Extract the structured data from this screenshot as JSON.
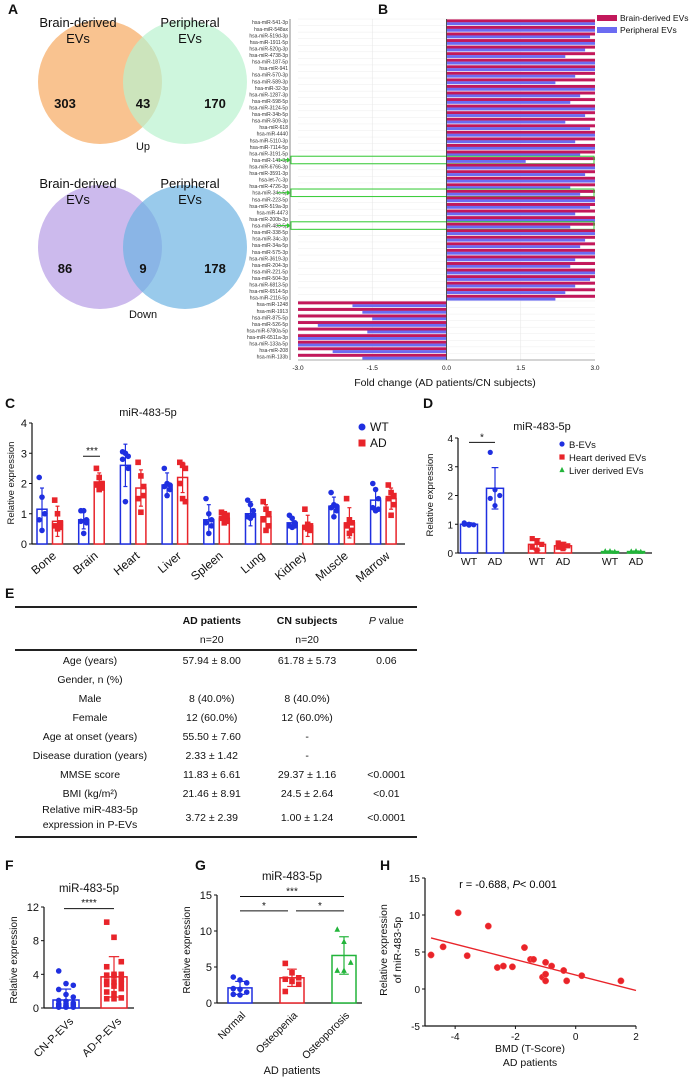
{
  "panel_labels": [
    "A",
    "B",
    "C",
    "D",
    "E",
    "F",
    "G",
    "H"
  ],
  "colors": {
    "orange": "#f9c08a",
    "green": "#b9f2cf",
    "purple": "#c9b6ec",
    "blue_venn": "#6db3e3",
    "magenta": "#c2185b",
    "periwinkle": "#6b6bf2",
    "wt_blue": "#1f2fe0",
    "ad_red": "#e8242a",
    "liver_green": "#22b43a",
    "highlight": "#33cc33"
  },
  "chart_data": [
    {
      "id": "A",
      "type": "venn",
      "sets": [
        {
          "title": "Up",
          "left_label": [
            "Brain-derived",
            "EVs"
          ],
          "right_label": [
            "Peripheral",
            "EVs"
          ],
          "left_only": "303",
          "overlap": "43",
          "right_only": "170"
        },
        {
          "title": "Down",
          "left_label": [
            "Brain-derived",
            "EVs"
          ],
          "right_label": [
            "Peripheral",
            "EVs"
          ],
          "left_only": "86",
          "overlap": "9",
          "right_only": "178"
        }
      ]
    },
    {
      "id": "B",
      "type": "bar",
      "orientation": "horizontal",
      "xlabel": "Fold change (AD patients/CN subjects)",
      "xlim": [
        -3.0,
        3.0
      ],
      "xticks": [
        "-3.0",
        "-1.5",
        "0.0",
        "1.5",
        "3.0"
      ],
      "legend_position": "top-right",
      "categories": [
        "hsa-miR-541-3p",
        "hsa-miR-548ax",
        "hsa-miR-519d-3p",
        "hsa-miR-1911-5p",
        "hsa-miR-520g-3p",
        "hsa-miR-4738-3p",
        "hsa-miR-187-5p",
        "hsa-miR-941",
        "hsa-miR-570-3p",
        "hsa-miR-589-3p",
        "hsa-miR-32-3p",
        "hsa-miR-1287-3p",
        "hsa-miR-598-5p",
        "hsa-miR-3124-5p",
        "hsa-miR-34b-5p",
        "hsa-miR-509-3p",
        "hsa-miR-618",
        "hsa-miR-4440",
        "hsa-miR-5110-3p",
        "hsa-miR-7114-5p",
        "hsa-miR-3191-5p",
        "hsa-miR-141-3p",
        "hsa-miR-6766-3p",
        "hsa-miR-3591-3p",
        "hsa-let-7c-3p",
        "hsa-miR-4726-3p",
        "hsa-miR-34c-5p",
        "hsa-miR-223-5p",
        "hsa-miR-519a-3p",
        "hsa-miR-4473",
        "hsa-miR-200b-3p",
        "hsa-miR-483-5p",
        "hsa-miR-338-5p",
        "hsa-miR-34c-3p",
        "hsa-miR-34a-5p",
        "hsa-miR-575-3p",
        "hsa-miR-3619-3p",
        "hsa-miR-204-3p",
        "hsa-miR-221-5p",
        "hsa-miR-504-3p",
        "hsa-miR-6813-5p",
        "hsa-miR-6514-5p",
        "hsa-miR-2116-5p",
        "hsa-miR-1248",
        "hsa-miR-1913",
        "hsa-miR-875-5p",
        "hsa-miR-526-5p",
        "hsa-miR-6780a-5p",
        "hsa-miR-6511a-3p",
        "hsa-miR-133a-5p",
        "hsa-miR-208",
        "hsa-miR-133b"
      ],
      "highlighted": [
        "hsa-miR-141-3p",
        "hsa-miR-34c-5p",
        "hsa-miR-483-5p"
      ],
      "series": [
        {
          "name": "Brain-derived EVs",
          "values": [
            3,
            3,
            3,
            3,
            3,
            3,
            3,
            3,
            3,
            3,
            3,
            3,
            3,
            3,
            3,
            3,
            3,
            3,
            3,
            3,
            3,
            3,
            3,
            3,
            3,
            3,
            3,
            3,
            3,
            3,
            3,
            3,
            3,
            3,
            3,
            3,
            3,
            3,
            3,
            3,
            3,
            3,
            3,
            -3,
            -3,
            -3,
            -3,
            -3,
            -3,
            -3,
            -3,
            -3
          ]
        },
        {
          "name": "Peripheral EVs",
          "values": [
            3,
            3,
            2.9,
            3,
            2.8,
            2.4,
            3,
            3,
            2.6,
            2.2,
            3,
            2.7,
            2.5,
            3,
            2.8,
            2.4,
            2.9,
            3,
            2.6,
            3,
            2.7,
            1.6,
            3,
            2.8,
            3,
            2.5,
            2.7,
            3,
            2.9,
            2.6,
            3,
            2.5,
            3,
            2.8,
            2.7,
            3,
            2.6,
            2.5,
            3,
            2.9,
            2.6,
            2.4,
            2.2,
            -1.9,
            -1.7,
            -1.5,
            -2.6,
            -1.6,
            -3,
            -3,
            -2.3,
            -1.7
          ]
        }
      ]
    },
    {
      "id": "C",
      "type": "bar",
      "title": "miR-483-5p",
      "ylabel": "Relative expression",
      "ylim": [
        0,
        4
      ],
      "yticks": [
        "0",
        "1",
        "2",
        "3",
        "4"
      ],
      "legend_position": "top-right",
      "categories": [
        "Bone",
        "Brain",
        "Heart",
        "Liver",
        "Spleen",
        "Lung",
        "Kidney",
        "Muscle",
        "Marrow"
      ],
      "significance": [
        {
          "category": "Brain",
          "label": "***"
        }
      ],
      "series": [
        {
          "name": "WT",
          "mean": [
            1.15,
            0.8,
            2.6,
            1.95,
            0.8,
            1.0,
            0.7,
            1.25,
            1.45
          ],
          "sd": [
            0.7,
            0.3,
            0.7,
            0.4,
            0.5,
            0.4,
            0.2,
            0.3,
            0.4
          ],
          "points": [
            [
              2.2,
              1.55,
              1.0,
              0.8,
              0.45,
              1.0
            ],
            [
              1.1,
              1.1,
              0.8,
              0.75,
              0.35,
              0.7
            ],
            [
              3.05,
              3.0,
              2.9,
              2.8,
              1.4,
              2.5
            ],
            [
              2.5,
              2.0,
              1.95,
              1.9,
              1.6,
              1.8
            ],
            [
              1.5,
              1.0,
              0.8,
              0.7,
              0.35,
              0.6
            ],
            [
              1.45,
              1.3,
              1.1,
              0.9,
              0.85,
              0.95
            ],
            [
              0.95,
              0.85,
              0.7,
              0.6,
              0.55,
              0.6
            ],
            [
              1.7,
              1.3,
              1.25,
              1.2,
              0.9,
              1.1
            ],
            [
              2.0,
              1.8,
              1.5,
              1.2,
              1.1,
              1.15
            ]
          ]
        },
        {
          "name": "AD",
          "mean": [
            0.75,
            2.05,
            1.85,
            2.2,
            0.85,
            0.9,
            0.6,
            0.7,
            1.5
          ],
          "sd": [
            0.5,
            0.3,
            0.6,
            0.5,
            0.2,
            0.4,
            0.35,
            0.5,
            0.35
          ],
          "points": [
            [
              1.45,
              1.0,
              0.7,
              0.6,
              0.5,
              0.55
            ],
            [
              2.5,
              2.2,
              2.0,
              1.95,
              1.8,
              1.85
            ],
            [
              2.7,
              2.25,
              1.9,
              1.5,
              1.05,
              1.6
            ],
            [
              2.7,
              2.6,
              2.5,
              2.0,
              1.5,
              1.4
            ],
            [
              1.05,
              1.0,
              0.95,
              0.85,
              0.7,
              0.75
            ],
            [
              1.4,
              1.15,
              1.0,
              0.8,
              0.45,
              0.6
            ],
            [
              1.15,
              0.65,
              0.6,
              0.55,
              0.5,
              0.45
            ],
            [
              1.5,
              0.8,
              0.7,
              0.6,
              0.35,
              0.45
            ],
            [
              1.95,
              1.7,
              1.6,
              1.5,
              0.95,
              1.3
            ]
          ]
        }
      ]
    },
    {
      "id": "D",
      "type": "bar",
      "title": "miR-483-5p",
      "ylabel": "Relative expression",
      "ylim": [
        0,
        4
      ],
      "yticks": [
        "0",
        "1",
        "2",
        "3",
        "4"
      ],
      "legend_position": "top-right",
      "categories": [
        "WT",
        "AD",
        "WT",
        "AD",
        "WT",
        "AD"
      ],
      "significance": [
        {
          "between": [
            "WT",
            "AD"
          ],
          "group": "B-EVs",
          "label": "*"
        }
      ],
      "series": [
        {
          "name": "B-EVs",
          "mean": [
            1.0,
            2.25
          ],
          "sd": [
            0.05,
            0.72
          ],
          "points": [
            [
              1.05,
              1.0,
              0.98,
              1.0,
              0.97
            ],
            [
              3.5,
              2.2,
              2.0,
              1.9,
              1.65
            ]
          ]
        },
        {
          "name": "Heart derived EVs",
          "mean": [
            0.3,
            0.25
          ],
          "sd": [
            0.2,
            0.12
          ],
          "points": [
            [
              0.5,
              0.4,
              0.3,
              0.2,
              0.1
            ],
            [
              0.35,
              0.3,
              0.25,
              0.2,
              0.15
            ]
          ]
        },
        {
          "name": "Liver derived EVs",
          "mean": [
            0.05,
            0.05
          ],
          "sd": [
            0.02,
            0.02
          ],
          "points": [
            [
              0.06,
              0.05,
              0.04,
              0.05,
              0.06
            ],
            [
              0.05,
              0.06,
              0.04,
              0.05,
              0.05
            ]
          ]
        }
      ]
    },
    {
      "id": "F",
      "type": "bar",
      "title": "miR-483-5p",
      "ylabel": "Relative expression",
      "ylim": [
        0,
        12
      ],
      "yticks": [
        "0",
        "4",
        "8",
        "12"
      ],
      "categories": [
        "CN-P-EVs",
        "AD-P-EVs"
      ],
      "significance": [
        {
          "between": [
            "CN-P-EVs",
            "AD-P-EVs"
          ],
          "label": "****"
        }
      ],
      "mean": [
        0.95,
        3.7
      ],
      "sd": [
        1.3,
        2.4
      ],
      "points": [
        [
          4.4,
          2.9,
          2.7,
          2.2,
          1.6,
          1.3,
          0.9,
          0.8,
          0.6,
          0.5,
          0.5,
          0.4,
          0.4,
          0.3,
          0.3,
          0.2,
          0.2,
          0.1,
          0.1,
          0.1
        ],
        [
          10.2,
          8.4,
          5.5,
          4.9,
          4.0,
          4.0,
          3.9,
          3.8,
          3.4,
          3.2,
          3.1,
          2.9,
          2.8,
          2.6,
          2.3,
          1.9,
          1.7,
          1.2,
          1.1,
          1.1
        ]
      ]
    },
    {
      "id": "G",
      "type": "bar",
      "title": "miR-483-5p",
      "ylabel": "Relative expression",
      "xlabel": "AD patients",
      "ylim": [
        0,
        15
      ],
      "yticks": [
        "0",
        "5",
        "10",
        "15"
      ],
      "categories": [
        "Normal",
        "Osteopenia",
        "Osteoporosis"
      ],
      "significance": [
        {
          "between": [
            "Normal",
            "Osteopenia"
          ],
          "label": "*"
        },
        {
          "between": [
            "Osteopenia",
            "Osteoporosis"
          ],
          "label": "*"
        },
        {
          "between": [
            "Normal",
            "Osteoporosis"
          ],
          "label": "***"
        }
      ],
      "mean": [
        2.1,
        3.5,
        6.6
      ],
      "sd": [
        0.9,
        1.2,
        2.6
      ],
      "points": [
        [
          3.6,
          3.2,
          2.8,
          2.0,
          1.9,
          1.5,
          1.2,
          1.1
        ],
        [
          5.5,
          4.2,
          3.5,
          3.3,
          3.0,
          2.6,
          1.6
        ],
        [
          10.2,
          8.5,
          5.6,
          4.5,
          4.5
        ]
      ]
    },
    {
      "id": "H",
      "type": "scatter",
      "annotation": "r = -0.688, P < 0.001",
      "annotation_parts": [
        "r = -0.688, ",
        "P",
        "< 0.001"
      ],
      "xlabel": "BMD (T-Score)",
      "xlabel2": "AD patients",
      "ylabel": "Relative expression",
      "ylabel2": "of miR-483-5p",
      "xlim": [
        -5,
        2
      ],
      "ylim": [
        -5,
        15
      ],
      "xticks": [
        "-4",
        "-2",
        "0",
        "2"
      ],
      "yticks": [
        "-5",
        "0",
        "5",
        "10",
        "15"
      ],
      "x": [
        -4.8,
        -4.4,
        -3.9,
        -3.6,
        -2.9,
        -2.6,
        -2.4,
        -2.1,
        -1.7,
        -1.5,
        -1.4,
        -1.1,
        -1.0,
        -1.0,
        -1.0,
        -0.8,
        -0.4,
        -0.3,
        0.2,
        1.5
      ],
      "y": [
        4.6,
        5.7,
        10.3,
        4.5,
        8.5,
        2.9,
        3.1,
        3.0,
        5.6,
        4.0,
        4.0,
        1.6,
        3.6,
        2.0,
        1.1,
        3.1,
        2.5,
        1.1,
        1.8,
        1.1
      ],
      "fit_line": {
        "x": [
          -4.8,
          2.0
        ],
        "y": [
          6.9,
          -0.2
        ]
      }
    }
  ],
  "table_e": {
    "headers": [
      [
        "",
        "AD patients",
        "CN subjects",
        "P value"
      ],
      [
        "",
        "n=20",
        "n=20",
        ""
      ]
    ],
    "p_header_italic": "P",
    "p_header_rest": " value",
    "rows": [
      [
        "Age (years)",
        "57.94 ± 8.00",
        "61.78 ± 5.73",
        "0.06"
      ],
      [
        "Gender, n (%)",
        "",
        "",
        ""
      ],
      [
        "Male",
        "8 (40.0%)",
        "8 (40.0%)",
        ""
      ],
      [
        "Female",
        "12 (60.0%)",
        "12 (60.0%)",
        ""
      ],
      [
        "Age at onset (years)",
        "55.50 ± 7.60",
        "-",
        ""
      ],
      [
        "Disease duration (years)",
        "2.33 ± 1.42",
        "-",
        ""
      ],
      [
        "MMSE score",
        "11.83 ± 6.61",
        "29.37 ± 1.16",
        "<0.0001"
      ],
      [
        "BMI (kg/m²)",
        "21.46 ± 8.91",
        "24.5 ± 2.64",
        "<0.01"
      ],
      [
        "Relative miR-483-5p\nexpression in P-EVs",
        "3.72 ± 2.39",
        "1.00 ± 1.24",
        "<0.0001"
      ]
    ]
  }
}
